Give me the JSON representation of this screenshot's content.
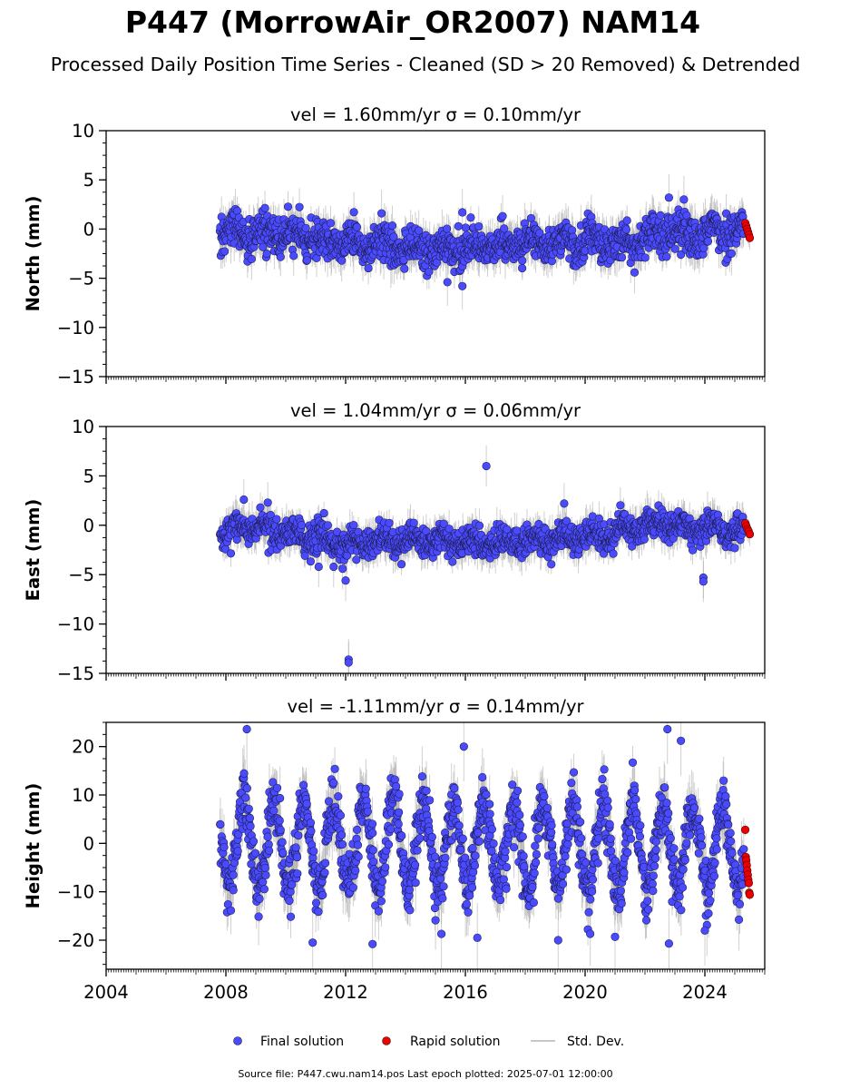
{
  "figure": {
    "title": "P447 (MorrowAir_OR2007) NAM14",
    "subtitle": "Processed Daily Position Time Series - Cleaned (SD > 20 Removed) & Detrended",
    "footer": "Source file: P447.cwu.nam14.pos  Last epoch plotted: 2025-07-01 12:00:00",
    "legend": {
      "placement": "bottom-center",
      "items": [
        {
          "label": "Final solution",
          "color": "#4a4aff",
          "marker": "circle"
        },
        {
          "label": "Rapid solution",
          "color": "#ee0000",
          "marker": "circle"
        },
        {
          "label": "Std. Dev.",
          "color": "#c8c8c8",
          "marker": "line"
        }
      ]
    }
  },
  "chart_data": [
    {
      "type": "scatter",
      "title": "vel = 1.60mm/yr   σ = 0.10mm/yr",
      "xlabel": "",
      "ylabel": "North (mm)",
      "xlim": [
        2004.0,
        2026.0
      ],
      "ylim": [
        -15,
        10
      ],
      "yticks": [
        -15,
        -10,
        -5,
        0,
        5,
        10
      ],
      "xticks": [
        "2004",
        "2008",
        "2012",
        "2016",
        "2020",
        "2024"
      ],
      "x_tick_labels_shown": false,
      "grid": false,
      "series": [
        {
          "name": "Final solution",
          "color": "#4a4aff",
          "x_range": [
            2007.8,
            2025.3
          ],
          "mean": -1.2,
          "scatter_sd": 1.2,
          "seasonal_amplitude": 0.6,
          "typical_sigma": 1.5,
          "trend": [
            [
              2007.8,
              -0.3
            ],
            [
              2009.5,
              -0.6
            ],
            [
              2012.0,
              -1.4
            ],
            [
              2015.5,
              -2.0
            ],
            [
              2017.0,
              -1.6
            ],
            [
              2019.0,
              -1.3
            ],
            [
              2021.0,
              -1.4
            ],
            [
              2023.0,
              -0.6
            ],
            [
              2025.3,
              -0.1
            ]
          ],
          "outliers": [
            [
              2015.9,
              1.7
            ],
            [
              2015.9,
              -5.8
            ],
            [
              2015.4,
              -5.4
            ],
            [
              2022.8,
              3.2
            ],
            [
              2023.3,
              3.0
            ],
            [
              2013.2,
              1.6
            ]
          ]
        },
        {
          "name": "Rapid solution",
          "color": "#ee0000",
          "x_range": [
            2025.35,
            2025.5
          ],
          "values": [
            0.6,
            0.3,
            0.0,
            -0.3,
            -0.6,
            -0.9
          ]
        }
      ]
    },
    {
      "type": "scatter",
      "title": "vel = 1.04mm/yr   σ = 0.06mm/yr",
      "xlabel": "",
      "ylabel": "East (mm)",
      "xlim": [
        2004.0,
        2026.0
      ],
      "ylim": [
        -15,
        10
      ],
      "yticks": [
        -15,
        -10,
        -5,
        0,
        5,
        10
      ],
      "xticks": [
        "2004",
        "2008",
        "2012",
        "2016",
        "2020",
        "2024"
      ],
      "x_tick_labels_shown": false,
      "grid": false,
      "series": [
        {
          "name": "Final solution",
          "color": "#4a4aff",
          "x_range": [
            2007.8,
            2025.3
          ],
          "mean": -1.2,
          "scatter_sd": 0.9,
          "seasonal_amplitude": 0.5,
          "typical_sigma": 1.3,
          "trend": [
            [
              2007.8,
              -1.2
            ],
            [
              2008.5,
              0.2
            ],
            [
              2010.0,
              -0.8
            ],
            [
              2012.0,
              -1.8
            ],
            [
              2014.0,
              -1.5
            ],
            [
              2017.0,
              -1.8
            ],
            [
              2019.5,
              -1.4
            ],
            [
              2021.0,
              -0.6
            ],
            [
              2022.5,
              0.3
            ],
            [
              2024.0,
              -0.5
            ],
            [
              2025.3,
              -0.4
            ]
          ],
          "outliers": [
            [
              2016.7,
              6.0
            ],
            [
              2012.1,
              -13.6
            ],
            [
              2012.1,
              -13.9
            ],
            [
              2012.0,
              -5.6
            ],
            [
              2023.95,
              -5.3
            ],
            [
              2023.95,
              -5.7
            ],
            [
              2011.1,
              -4.2
            ],
            [
              2011.6,
              -4.2
            ],
            [
              2011.9,
              -4.4
            ],
            [
              2019.3,
              2.2
            ],
            [
              2008.6,
              2.6
            ],
            [
              2009.4,
              2.3
            ]
          ]
        },
        {
          "name": "Rapid solution",
          "color": "#ee0000",
          "x_range": [
            2025.35,
            2025.5
          ],
          "values": [
            0.2,
            -0.1,
            -0.4,
            -0.6,
            -0.9
          ]
        }
      ]
    },
    {
      "type": "scatter",
      "title": "vel = -1.11mm/yr   σ = 0.14mm/yr",
      "xlabel": "",
      "ylabel": "Height (mm)",
      "xlim": [
        2004.0,
        2026.0
      ],
      "ylim": [
        -26,
        25
      ],
      "yticks": [
        -20,
        -10,
        0,
        10,
        20
      ],
      "xticks": [
        "2004",
        "2008",
        "2012",
        "2016",
        "2020",
        "2024"
      ],
      "x_tick_labels_shown": true,
      "grid": false,
      "series": [
        {
          "name": "Final solution",
          "color": "#4a4aff",
          "x_range": [
            2007.8,
            2025.3
          ],
          "mean": -0.5,
          "scatter_sd": 3.5,
          "seasonal_amplitude": 9.0,
          "seasonal_peak_fraction": 0.6,
          "typical_sigma": 4.5,
          "trend": [
            [
              2007.8,
              0.0
            ],
            [
              2025.3,
              -1.0
            ]
          ],
          "outliers": [
            [
              2008.7,
              23.6
            ],
            [
              2022.75,
              23.6
            ],
            [
              2023.2,
              21.2
            ],
            [
              2015.95,
              20.0
            ],
            [
              2012.9,
              -20.8
            ],
            [
              2022.8,
              -20.7
            ],
            [
              2010.9,
              -20.5
            ],
            [
              2019.1,
              -20.0
            ],
            [
              2024.0,
              -18.0
            ],
            [
              2015.2,
              -18.7
            ],
            [
              2021.0,
              -19.3
            ],
            [
              2016.4,
              -19.5
            ]
          ]
        },
        {
          "name": "Rapid solution",
          "color": "#ee0000",
          "x_range": [
            2025.35,
            2025.5
          ],
          "values": [
            2.8,
            -2.8,
            -3.5,
            -4.5,
            -5.6,
            -6.5,
            -7.5,
            -8.2,
            -10.2,
            -10.6
          ]
        }
      ]
    }
  ]
}
